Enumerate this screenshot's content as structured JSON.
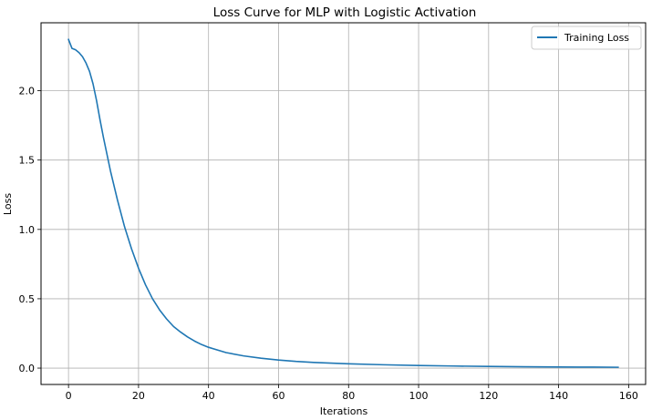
{
  "chart_data": {
    "type": "line",
    "title": "Loss Curve for MLP with Logistic Activation",
    "xlabel": "Iterations",
    "ylabel": "Loss",
    "xlim": [
      -7.85,
      164.85
    ],
    "ylim": [
      -0.118,
      2.49
    ],
    "xticks": [
      0,
      20,
      40,
      60,
      80,
      100,
      120,
      140,
      160
    ],
    "xtick_labels": [
      "0",
      "20",
      "40",
      "60",
      "80",
      "100",
      "120",
      "140",
      "160"
    ],
    "yticks": [
      0.0,
      0.5,
      1.0,
      1.5,
      2.0
    ],
    "ytick_labels": [
      "0.0",
      "0.5",
      "1.0",
      "1.5",
      "2.0"
    ],
    "grid": true,
    "legend": {
      "position": "top-right"
    },
    "series": [
      {
        "name": "Training Loss",
        "color": "#1f77b4",
        "x": [
          0,
          1,
          2,
          3,
          4,
          5,
          6,
          7,
          8,
          9,
          10,
          12,
          14,
          16,
          18,
          20,
          22,
          24,
          26,
          28,
          30,
          32,
          34,
          36,
          38,
          40,
          45,
          50,
          55,
          60,
          65,
          70,
          80,
          90,
          100,
          110,
          120,
          130,
          140,
          150,
          157
        ],
        "y": [
          2.37,
          2.305,
          2.295,
          2.275,
          2.245,
          2.2,
          2.14,
          2.05,
          1.93,
          1.79,
          1.66,
          1.42,
          1.21,
          1.02,
          0.86,
          0.72,
          0.6,
          0.5,
          0.42,
          0.355,
          0.3,
          0.26,
          0.225,
          0.195,
          0.17,
          0.15,
          0.112,
          0.088,
          0.071,
          0.058,
          0.048,
          0.041,
          0.031,
          0.024,
          0.019,
          0.015,
          0.012,
          0.01,
          0.008,
          0.007,
          0.006
        ]
      }
    ]
  }
}
